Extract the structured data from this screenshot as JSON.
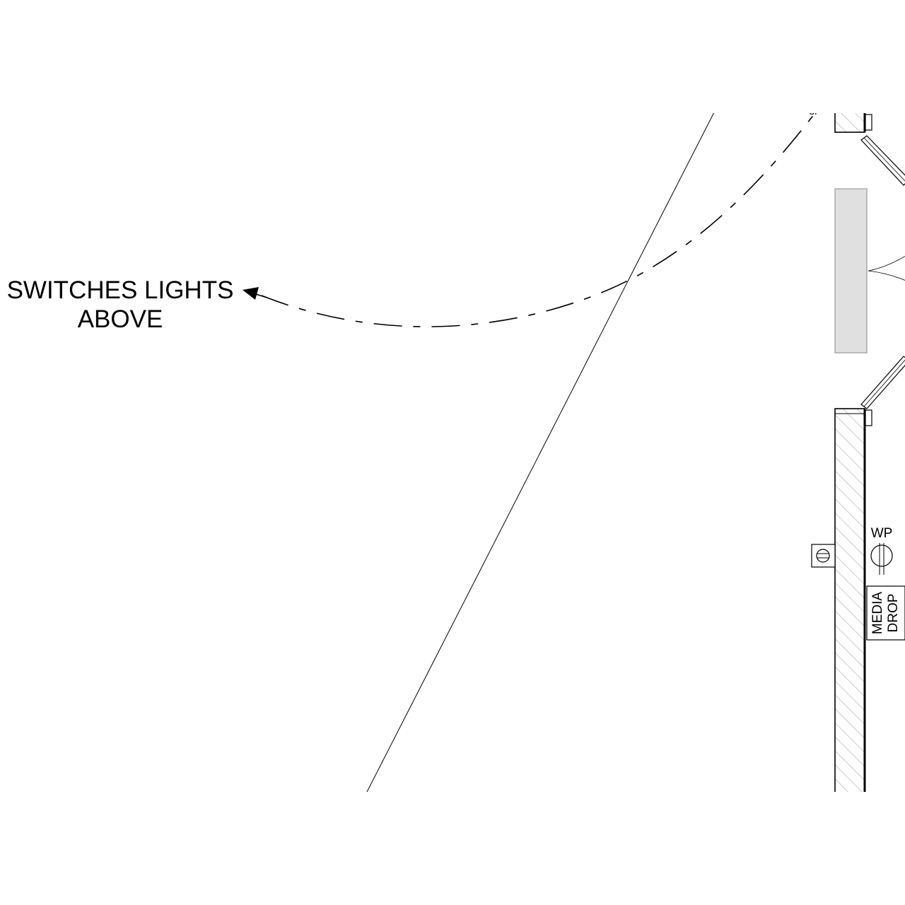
{
  "drawing": {
    "annotation": {
      "line1": "SWITCHES LIGHTS",
      "line2": "ABOVE"
    },
    "wp_label": "WP",
    "media_drop": {
      "line1": "MEDIA",
      "line2": "DROP"
    }
  },
  "colors": {
    "line": "#000000",
    "window_fill": "#e0e0e0",
    "window_stroke": "#9a9a9a",
    "hatch": "#9a9a9a",
    "background": "#ffffff"
  }
}
